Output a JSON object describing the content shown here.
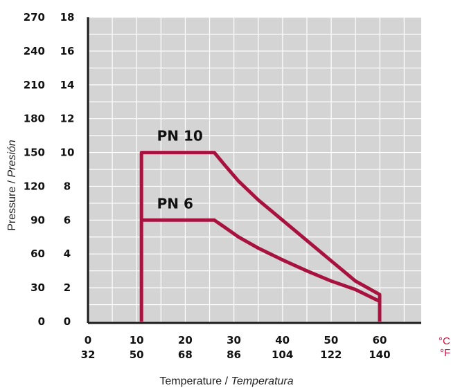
{
  "chart_data": {
    "type": "line",
    "title": "",
    "xlabel": {
      "main": "Temperature / ",
      "italic": "Temperatura"
    },
    "ylabel": {
      "main": "Pressure / ",
      "italic": "Presión"
    },
    "xlim": [
      0,
      60
    ],
    "ylim": [
      0,
      18
    ],
    "grid": true,
    "x_ticks": [
      {
        "c": 0,
        "c_label": "0",
        "f_label": "32"
      },
      {
        "c": 10,
        "c_label": "10",
        "f_label": "50"
      },
      {
        "c": 20,
        "c_label": "20",
        "f_label": "68"
      },
      {
        "c": 30,
        "c_label": "30",
        "f_label": "86"
      },
      {
        "c": 40,
        "c_label": "40",
        "f_label": "104"
      },
      {
        "c": 50,
        "c_label": "50",
        "f_label": "122"
      },
      {
        "c": 60,
        "c_label": "60",
        "f_label": "140"
      }
    ],
    "y_ticks": [
      {
        "bar": 0,
        "bar_label": "0",
        "psi_label": "0"
      },
      {
        "bar": 2,
        "bar_label": "2",
        "psi_label": "30"
      },
      {
        "bar": 4,
        "bar_label": "4",
        "psi_label": "60"
      },
      {
        "bar": 6,
        "bar_label": "6",
        "psi_label": "90"
      },
      {
        "bar": 8,
        "bar_label": "8",
        "psi_label": "120"
      },
      {
        "bar": 10,
        "bar_label": "10",
        "psi_label": "150"
      },
      {
        "bar": 12,
        "bar_label": "12",
        "psi_label": "180"
      },
      {
        "bar": 14,
        "bar_label": "14",
        "psi_label": "210"
      },
      {
        "bar": 16,
        "bar_label": "16",
        "psi_label": "240"
      },
      {
        "bar": 18,
        "bar_label": "18",
        "psi_label": "270"
      }
    ],
    "units": {
      "x_primary": "°C",
      "x_secondary": "°F"
    },
    "series": [
      {
        "name": "PN 10",
        "x": [
          11,
          11,
          26,
          28,
          31,
          35,
          40,
          45,
          50,
          55,
          60,
          60
        ],
        "y": [
          0,
          10,
          10,
          9.3,
          8.3,
          7.2,
          6.0,
          4.8,
          3.6,
          2.4,
          1.6,
          0
        ]
      },
      {
        "name": "PN 6",
        "x": [
          11,
          26,
          28,
          31,
          35,
          40,
          45,
          50,
          55,
          60
        ],
        "y": [
          6,
          6,
          5.6,
          5.0,
          4.35,
          3.65,
          3.0,
          2.4,
          1.9,
          1.2
        ]
      }
    ],
    "colors": {
      "line": "#A8123F",
      "plot_bg": "#D4D4D4",
      "grid": "#FFFFFF",
      "unit_text": "#C8103E"
    }
  }
}
